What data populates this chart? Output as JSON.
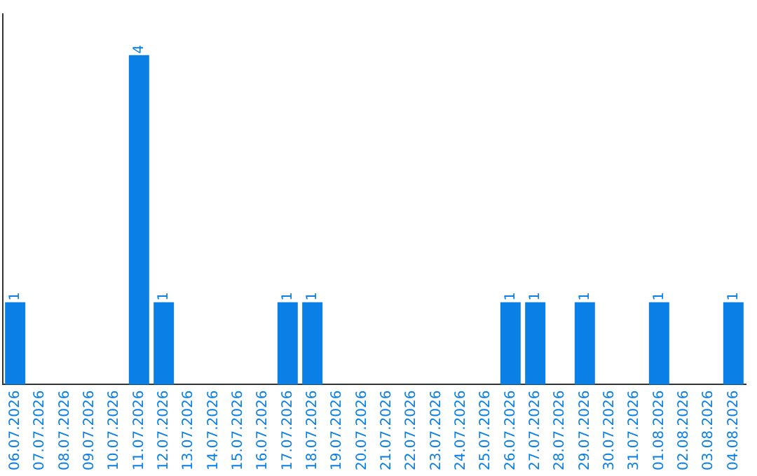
{
  "chart_data": {
    "type": "bar",
    "categories": [
      "06.07.2026",
      "07.07.2026",
      "08.07.2026",
      "09.07.2026",
      "10.07.2026",
      "11.07.2026",
      "12.07.2026",
      "13.07.2026",
      "14.07.2026",
      "15.07.2026",
      "16.07.2026",
      "17.07.2026",
      "18.07.2026",
      "19.07.2026",
      "20.07.2026",
      "21.07.2026",
      "22.07.2026",
      "23.07.2026",
      "24.07.2026",
      "25.07.2026",
      "26.07.2026",
      "27.07.2026",
      "28.07.2026",
      "29.07.2026",
      "30.07.2026",
      "31.07.2026",
      "01.08.2026",
      "02.08.2026",
      "03.08.2026",
      "04.08.2026"
    ],
    "values": [
      1,
      0,
      0,
      0,
      0,
      4,
      1,
      0,
      0,
      0,
      0,
      1,
      1,
      0,
      0,
      0,
      0,
      0,
      0,
      0,
      1,
      1,
      0,
      1,
      0,
      0,
      1,
      0,
      0,
      1
    ],
    "value_labels": [
      "1",
      null,
      null,
      null,
      null,
      "4",
      "1",
      null,
      null,
      null,
      null,
      "1",
      "1",
      null,
      null,
      null,
      null,
      null,
      null,
      null,
      "1",
      "1",
      null,
      "1",
      null,
      null,
      "1",
      null,
      null,
      "1"
    ],
    "color": "#0a7fe6",
    "tick_labels": "x",
    "grid": false,
    "legend": false
  }
}
